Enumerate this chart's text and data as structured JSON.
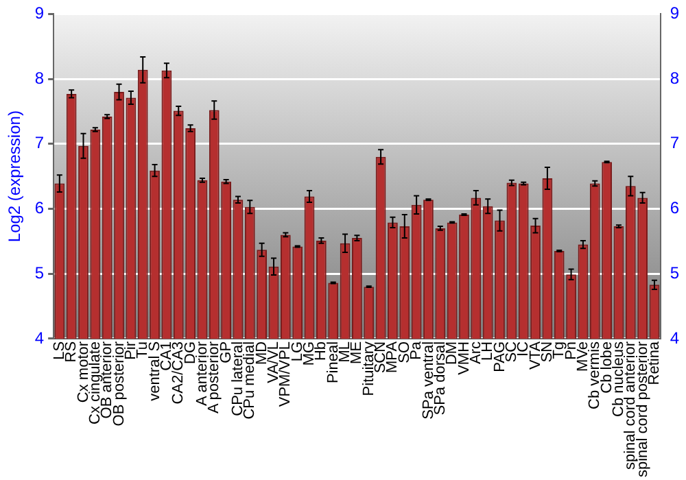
{
  "chart_data": {
    "type": "bar",
    "ylabel": "Log2 (expression)",
    "categories": [
      "LS",
      "RS",
      "Cx motor",
      "Cx cingulate",
      "OB anterior",
      "OB posterior",
      "Pir",
      "Tu",
      "ventral S",
      "CA1",
      "CA2/CA3",
      "DG",
      "A anterior",
      "A posterior",
      "GP",
      "CPu lateral",
      "CPu medial",
      "MD",
      "VA/VL",
      "VPM/VPL",
      "LG",
      "MG",
      "Hb",
      "Pineal",
      "ML",
      "ME",
      "Pituitary",
      "SCN",
      "MPA",
      "SO",
      "Pa",
      "SPa ventral",
      "SPa dorsal",
      "DM",
      "VMH",
      "Arc",
      "LH",
      "PAG",
      "SC",
      "IC",
      "VTA",
      "SN",
      "Tg",
      "Pn",
      "MVe",
      "Cb vermis",
      "Cb lobe",
      "Cb nucleus",
      "spinal cord anterior",
      "spinal cord posterior",
      "Retina"
    ],
    "values": [
      6.39,
      7.77,
      6.97,
      7.22,
      7.42,
      7.8,
      7.71,
      8.14,
      6.59,
      8.13,
      7.51,
      7.24,
      6.44,
      7.52,
      6.42,
      6.14,
      6.03,
      5.37,
      5.11,
      5.6,
      5.42,
      6.19,
      5.51,
      4.86,
      5.47,
      5.55,
      4.8,
      6.8,
      5.79,
      5.73,
      6.06,
      6.14,
      5.7,
      5.79,
      5.91,
      6.17,
      6.04,
      5.82,
      6.4,
      6.39,
      5.74,
      6.47,
      5.35,
      4.99,
      5.45,
      6.39,
      6.72,
      5.73,
      6.35,
      6.17,
      4.83
    ],
    "errors": [
      0.13,
      0.06,
      0.19,
      0.03,
      0.03,
      0.12,
      0.1,
      0.2,
      0.09,
      0.11,
      0.07,
      0.05,
      0.03,
      0.14,
      0.03,
      0.05,
      0.1,
      0.1,
      0.13,
      0.03,
      0.01,
      0.09,
      0.04,
      0.01,
      0.14,
      0.04,
      0.01,
      0.11,
      0.08,
      0.18,
      0.14,
      0.01,
      0.03,
      0.01,
      0.01,
      0.11,
      0.11,
      0.16,
      0.04,
      0.02,
      0.11,
      0.17,
      0.01,
      0.08,
      0.06,
      0.04,
      0.01,
      0.02,
      0.15,
      0.08,
      0.07
    ],
    "color": "#b52f2f",
    "ylim": [
      4,
      9
    ],
    "yticks": [
      4,
      5,
      6,
      7,
      8,
      9
    ],
    "y2lim": [
      4,
      9
    ],
    "y2ticks": [
      4,
      5,
      6,
      7,
      8,
      9
    ],
    "grid": "y",
    "legend": false
  }
}
